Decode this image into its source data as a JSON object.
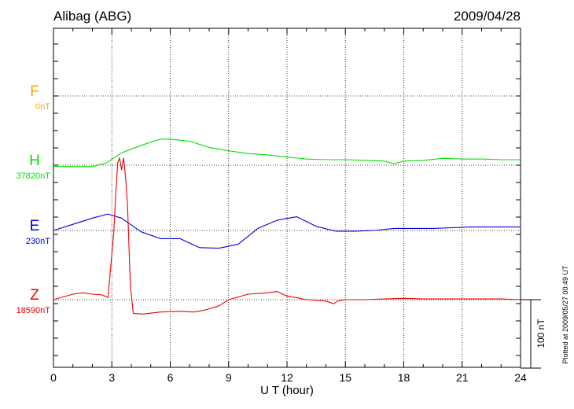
{
  "chart_data": {
    "type": "line",
    "station": "Alibag (ABG)",
    "date": "2009/04/28",
    "xlabel": "U T (hour)",
    "xlim": [
      0,
      24
    ],
    "x_ticks": [
      "0",
      "3",
      "6",
      "9",
      "12",
      "15",
      "18",
      "21",
      "24"
    ],
    "grid": "dotted",
    "plotted_note": "Plotted at 2009/05/27 00:49 UT",
    "scale_bar_label": "100 nT",
    "scale_bar_nT": 100,
    "series": [
      {
        "name": "F",
        "baseline_label": "0nT",
        "baseline_nT": 0,
        "color": "#ffa500",
        "x": [],
        "y": []
      },
      {
        "name": "H",
        "baseline_label": "37820nT",
        "baseline_nT": 37820,
        "color": "#00e000",
        "x": [
          0,
          1,
          2,
          2.7,
          3.5,
          4.5,
          5.5,
          6,
          7,
          8,
          9,
          10,
          11,
          12,
          13,
          14,
          15,
          16,
          17,
          17.5,
          18,
          19,
          20,
          21,
          22,
          23,
          24
        ],
        "y": [
          37818,
          37818,
          37818,
          37823,
          37838,
          37849,
          37858,
          37858,
          37855,
          37846,
          37841,
          37837,
          37835,
          37832,
          37829,
          37828,
          37828,
          37827,
          37826,
          37822,
          37826,
          37827,
          37830,
          37829,
          37829,
          37828,
          37828
        ]
      },
      {
        "name": "E",
        "baseline_label": "230nT",
        "baseline_nT": 230,
        "color": "#0000dd",
        "x": [
          0,
          1,
          2,
          2.8,
          3.5,
          4.5,
          5.5,
          6.5,
          7.5,
          8.5,
          9.5,
          10.5,
          11.5,
          12.5,
          13.5,
          14.5,
          15.5,
          16.5,
          17.5,
          18.5,
          19.5,
          20.5,
          21.5,
          22.5,
          23.5,
          24
        ],
        "y": [
          230,
          239,
          248,
          254,
          248,
          228,
          218,
          218,
          205,
          204,
          210,
          233,
          245,
          250,
          236,
          229,
          229,
          230,
          233,
          233,
          233,
          234,
          235,
          235,
          235,
          235
        ]
      },
      {
        "name": "Z",
        "baseline_label": "18590nT",
        "baseline_nT": 18590,
        "color": "#ee0000",
        "x": [
          0,
          1,
          1.5,
          2,
          2.5,
          2.8,
          3.1,
          3.2,
          3.3,
          3.4,
          3.5,
          3.6,
          3.7,
          3.8,
          3.95,
          4.1,
          4.6,
          5.5,
          6.5,
          7.2,
          7.8,
          8.5,
          9,
          10,
          11,
          11.5,
          12,
          12.5,
          13,
          14,
          14.4,
          14.6,
          15,
          16,
          17,
          18,
          19,
          20,
          21,
          22,
          23,
          24
        ],
        "y": [
          18590,
          18598,
          18600,
          18598,
          18597,
          18593,
          18688,
          18745,
          18790,
          18797,
          18780,
          18797,
          18770,
          18730,
          18610,
          18570,
          18569,
          18572,
          18573,
          18572,
          18575,
          18581,
          18590,
          18598,
          18600,
          18602,
          18595,
          18593,
          18590,
          18588,
          18584,
          18588,
          18590,
          18590,
          18591,
          18592,
          18591,
          18591,
          18591,
          18591,
          18591,
          18590
        ]
      }
    ]
  }
}
